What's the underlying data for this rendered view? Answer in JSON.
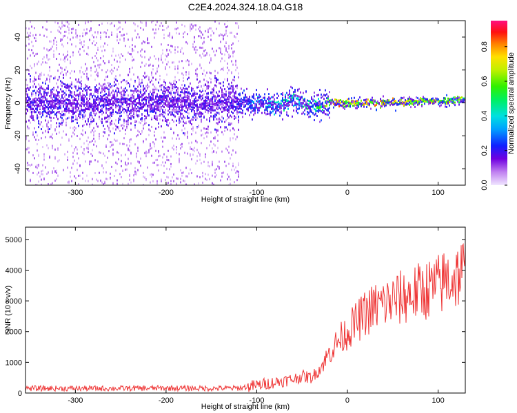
{
  "chart_data": [
    {
      "type": "heatmap",
      "title": "C2E4.2024.324.18.04.G18",
      "xlabel": "Height of straight line (km)",
      "ylabel": "Frequency (Hz)",
      "xlim": [
        -355,
        130
      ],
      "ylim": [
        -50,
        50
      ],
      "x_ticks": [
        "-300",
        "-200",
        "-100",
        "0",
        "100"
      ],
      "y_ticks": [
        "-40",
        "-20",
        "0",
        "20",
        "40"
      ],
      "colorbar": {
        "label": "Normalized spectral amplitude",
        "range": [
          0,
          0.95
        ],
        "ticks": [
          "0.0",
          "0.2",
          "0.4",
          "0.6",
          "0.8"
        ]
      },
      "series": [
        {
          "x": [
            -340,
            -300,
            -260,
            -220,
            -180,
            -140,
            -120,
            -100,
            -80,
            -60,
            -40,
            -20,
            -10,
            0,
            20,
            40,
            60,
            80,
            100,
            120
          ],
          "center_freq": [
            0,
            0,
            0,
            0,
            0,
            0,
            0,
            0,
            -2,
            2,
            -2,
            0,
            0,
            0,
            0,
            0,
            0,
            1,
            1,
            2
          ],
          "amplitude": [
            0.15,
            0.15,
            0.15,
            0.15,
            0.15,
            0.15,
            0.2,
            0.35,
            0.45,
            0.45,
            0.45,
            0.7,
            0.9,
            0.7,
            0.75,
            0.75,
            0.7,
            0.7,
            0.65,
            0.6
          ]
        }
      ]
    },
    {
      "type": "line",
      "xlabel": "Height of straight line (km)",
      "ylabel": "SNR (10 * v/v)",
      "xlim": [
        -355,
        130
      ],
      "ylim": [
        0,
        5400
      ],
      "x_ticks": [
        "-300",
        "-200",
        "-100",
        "0",
        "100"
      ],
      "y_ticks": [
        "0",
        "1000",
        "2000",
        "3000",
        "4000",
        "5000"
      ],
      "color": "#ee3333",
      "series": [
        {
          "x": [
            -355,
            -300,
            -250,
            -200,
            -150,
            -120,
            -100,
            -80,
            -60,
            -50,
            -40,
            -30,
            -20,
            -10,
            0,
            10,
            20,
            30,
            40,
            50,
            60,
            70,
            80,
            90,
            100,
            110,
            120,
            130
          ],
          "y": [
            150,
            150,
            150,
            160,
            150,
            160,
            250,
            350,
            450,
            550,
            500,
            800,
            1300,
            1700,
            2000,
            2300,
            2600,
            2800,
            2900,
            3000,
            3100,
            3200,
            3300,
            3400,
            3500,
            3700,
            3800,
            4000
          ]
        }
      ]
    }
  ]
}
